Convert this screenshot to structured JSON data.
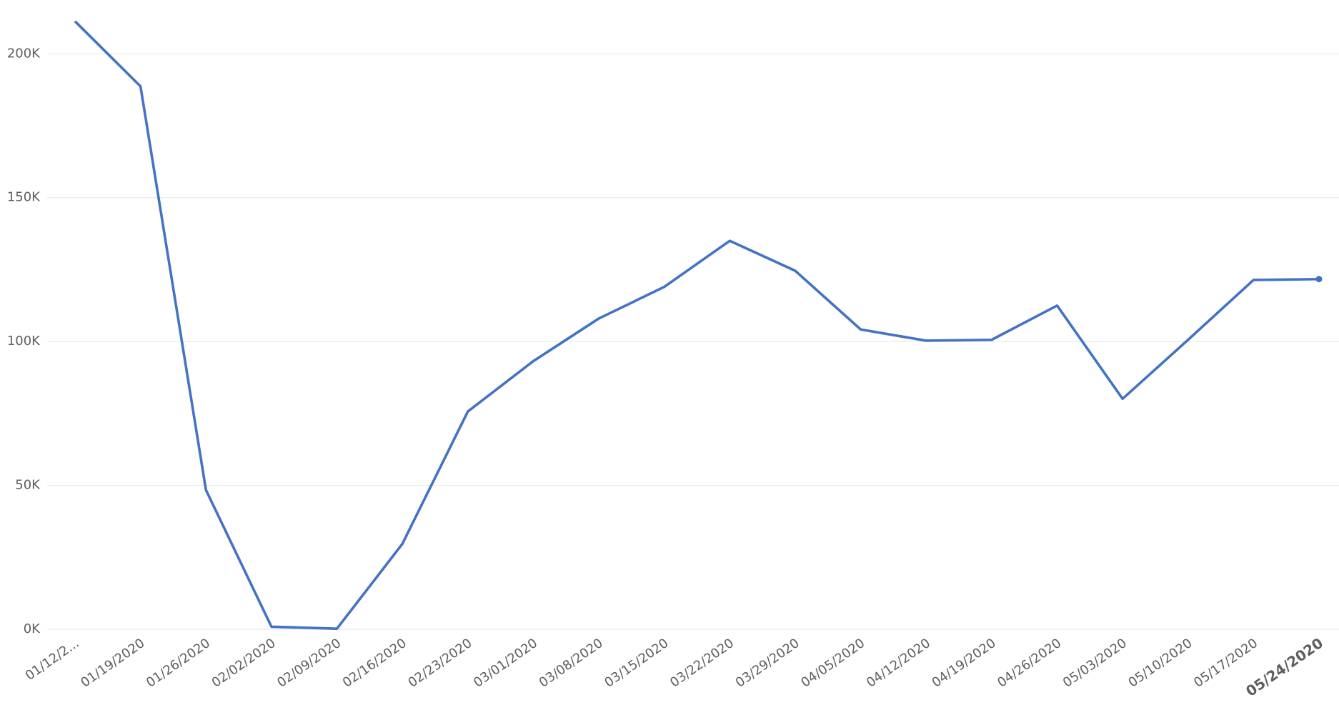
{
  "chart_data": {
    "type": "line",
    "categories": [
      "01/12/2...",
      "01/19/2020",
      "01/26/2020",
      "02/02/2020",
      "02/09/2020",
      "02/16/2020",
      "02/23/2020",
      "03/01/2020",
      "03/08/2020",
      "03/15/2020",
      "03/22/2020",
      "03/29/2020",
      "04/05/2020",
      "04/12/2020",
      "04/19/2020",
      "04/26/2020",
      "05/03/2020",
      "05/10/2020",
      "05/17/2020",
      "05/24/2020"
    ],
    "series": [
      {
        "color": "#4472c4",
        "values": [
          211300,
          188700,
          48400,
          900,
          200,
          29700,
          75700,
          93200,
          108000,
          119000,
          135000,
          124600,
          104200,
          100300,
          100600,
          112500,
          80100,
          100600,
          121400,
          121700
        ]
      }
    ],
    "ylim": [
      0,
      218700
    ],
    "yticks": [
      {
        "value": 0,
        "label": "0K"
      },
      {
        "value": 50000,
        "label": "50K"
      },
      {
        "value": 100000,
        "label": "100K"
      },
      {
        "value": 150000,
        "label": "150K"
      },
      {
        "value": 200000,
        "label": "200K"
      }
    ],
    "grid": true
  }
}
